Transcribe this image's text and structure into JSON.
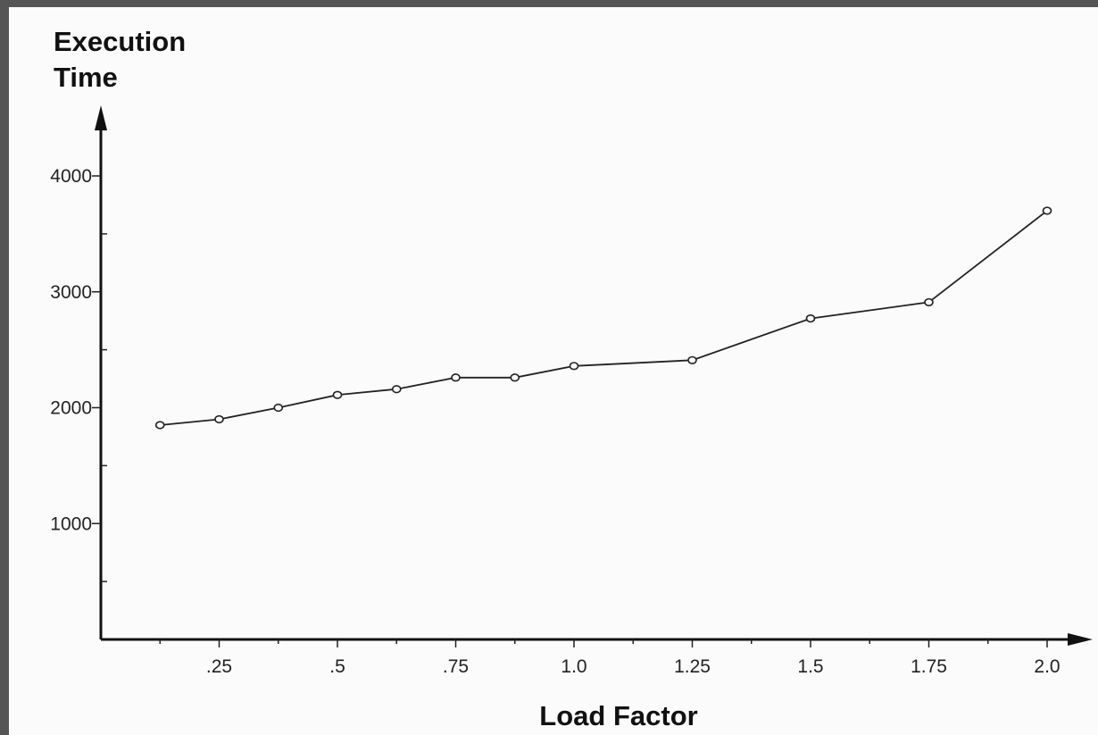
{
  "chart_data": {
    "type": "line",
    "title": "",
    "xlabel": "Load Factor",
    "ylabel_lines": [
      "Execution",
      "Time"
    ],
    "x": [
      0.125,
      0.25,
      0.375,
      0.5,
      0.625,
      0.75,
      0.875,
      1.0,
      1.25,
      1.5,
      1.75,
      2.0
    ],
    "series": [
      {
        "values": [
          1850,
          1900,
          2000,
          2110,
          2160,
          2260,
          2260,
          2360,
          2410,
          2770,
          2910,
          3700
        ]
      }
    ],
    "xlim": [
      0,
      2.1
    ],
    "ylim": [
      0,
      4400
    ],
    "x_major_ticks": [
      {
        "value": 0.25,
        "label": ".25"
      },
      {
        "value": 0.5,
        "label": ".5"
      },
      {
        "value": 0.75,
        "label": ".75"
      },
      {
        "value": 1.0,
        "label": "1.0"
      },
      {
        "value": 1.25,
        "label": "1.25"
      },
      {
        "value": 1.5,
        "label": "1.5"
      },
      {
        "value": 1.75,
        "label": "1.75"
      },
      {
        "value": 2.0,
        "label": "2.0"
      }
    ],
    "x_minor_ticks": [
      0.125,
      0.375,
      0.625,
      0.875,
      1.125,
      1.375,
      1.625,
      1.875
    ],
    "y_major_ticks": [
      {
        "value": 1000,
        "label": "1000"
      },
      {
        "value": 2000,
        "label": "2000"
      },
      {
        "value": 3000,
        "label": "3000"
      },
      {
        "value": 4000,
        "label": "4000"
      }
    ],
    "y_minor_ticks": [
      500,
      1500,
      2500,
      3500
    ],
    "grid": false,
    "legend": "none",
    "colors": {
      "line": "#222222",
      "background": "#fbfbfb",
      "border": "#555555"
    }
  }
}
